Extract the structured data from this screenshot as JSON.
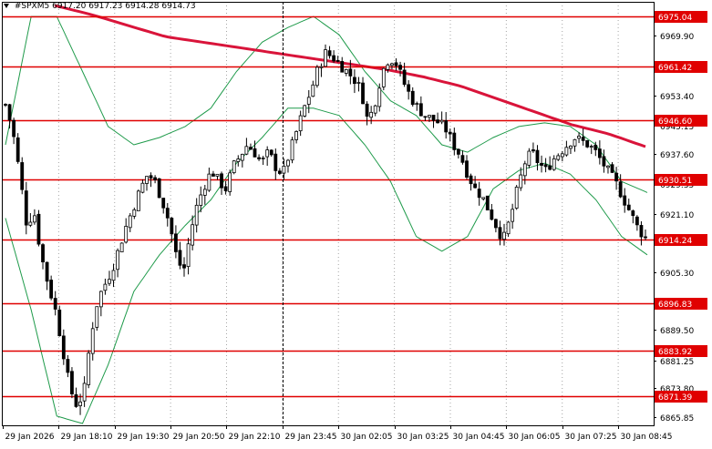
{
  "header": {
    "symbol": "#SPX",
    "timeframe": "M5",
    "ohlc": "6917.20 6917.23 6914.28 6914.73"
  },
  "colors": {
    "candle": "#000000",
    "level_line": "#e00000",
    "level_label_bg": "#e00000",
    "moving_average": "#d9143a",
    "bollinger": "#1e9a4a",
    "grid": "#000000"
  },
  "chart_data": {
    "type": "candlestick",
    "ylim": [
      6863.5,
      6979.0
    ],
    "y_ticks": [
      "6969.90",
      "6961.42",
      "6953.40",
      "6945.15",
      "6937.60",
      "6929.35",
      "6921.10",
      "6913.55",
      "6905.30",
      "6897.05",
      "6889.50",
      "6881.25",
      "6873.80",
      "6865.85"
    ],
    "x_labels": [
      "29 Jan 2026",
      "29 Jan 18:10",
      "29 Jan 19:30",
      "29 Jan 20:50",
      "29 Jan 22:10",
      "29 Jan 23:45",
      "30 Jan 02:05",
      "30 Jan 03:25",
      "30 Jan 04:45",
      "30 Jan 06:05",
      "30 Jan 07:25",
      "30 Jan 08:45"
    ],
    "levels": [
      {
        "value": 6975.04,
        "label": "6975.04"
      },
      {
        "value": 6961.42,
        "label": "6961.42"
      },
      {
        "value": 6946.6,
        "label": "6946.60"
      },
      {
        "value": 6930.51,
        "label": "6930.51"
      },
      {
        "value": 6914.24,
        "label": "6914.24"
      },
      {
        "value": 6896.83,
        "label": "6896.83"
      },
      {
        "value": 6883.92,
        "label": "6883.92"
      },
      {
        "value": 6871.39,
        "label": "6871.39"
      }
    ],
    "price_path": [
      6951,
      6944,
      6932,
      6918,
      6922,
      6910,
      6902,
      6895,
      6885,
      6874,
      6869,
      6872,
      6888,
      6898,
      6902,
      6906,
      6912,
      6918,
      6923,
      6928,
      6932,
      6930,
      6925,
      6919,
      6910,
      6905,
      6916,
      6924,
      6929,
      6933,
      6930,
      6928,
      6934,
      6937,
      6940,
      6938,
      6935,
      6938,
      6934,
      6932,
      6938,
      6944,
      6950,
      6955,
      6961,
      6965,
      6964,
      6962,
      6960,
      6958,
      6955,
      6946,
      6952,
      6960,
      6964,
      6962,
      6957,
      6953,
      6950,
      6948,
      6947,
      6946,
      6944,
      6940,
      6937,
      6932,
      6928,
      6926,
      6922,
      6918,
      6914,
      6920,
      6928,
      6935,
      6938,
      6935,
      6933,
      6936,
      6938,
      6940,
      6942,
      6941,
      6940,
      6938,
      6935,
      6932,
      6929,
      6925,
      6921,
      6917,
      6914.7
    ],
    "ma_path": [
      6978,
      6975.5,
      6972.5,
      6969.5,
      6968,
      6966.5,
      6965,
      6963.5,
      6962,
      6960.5,
      6958.5,
      6956,
      6952.5,
      6949,
      6945.5,
      6943,
      6939.5
    ],
    "bb_upper": [
      6940,
      6975,
      6975,
      6960,
      6945,
      6940,
      6942,
      6945,
      6950,
      6960,
      6968,
      6972,
      6975,
      6970,
      6960,
      6952,
      6948,
      6940,
      6938,
      6942,
      6945,
      6946,
      6945,
      6940,
      6930,
      6927
    ],
    "bb_lower": [
      6920,
      6895,
      6866,
      6864,
      6880,
      6900,
      6910,
      6918,
      6925,
      6935,
      6942,
      6950,
      6950,
      6948,
      6940,
      6930,
      6915,
      6911,
      6915,
      6928,
      6933,
      6935,
      6932,
      6925,
      6915,
      6910
    ],
    "cursor_x_label": "29 Jan 23:45"
  }
}
